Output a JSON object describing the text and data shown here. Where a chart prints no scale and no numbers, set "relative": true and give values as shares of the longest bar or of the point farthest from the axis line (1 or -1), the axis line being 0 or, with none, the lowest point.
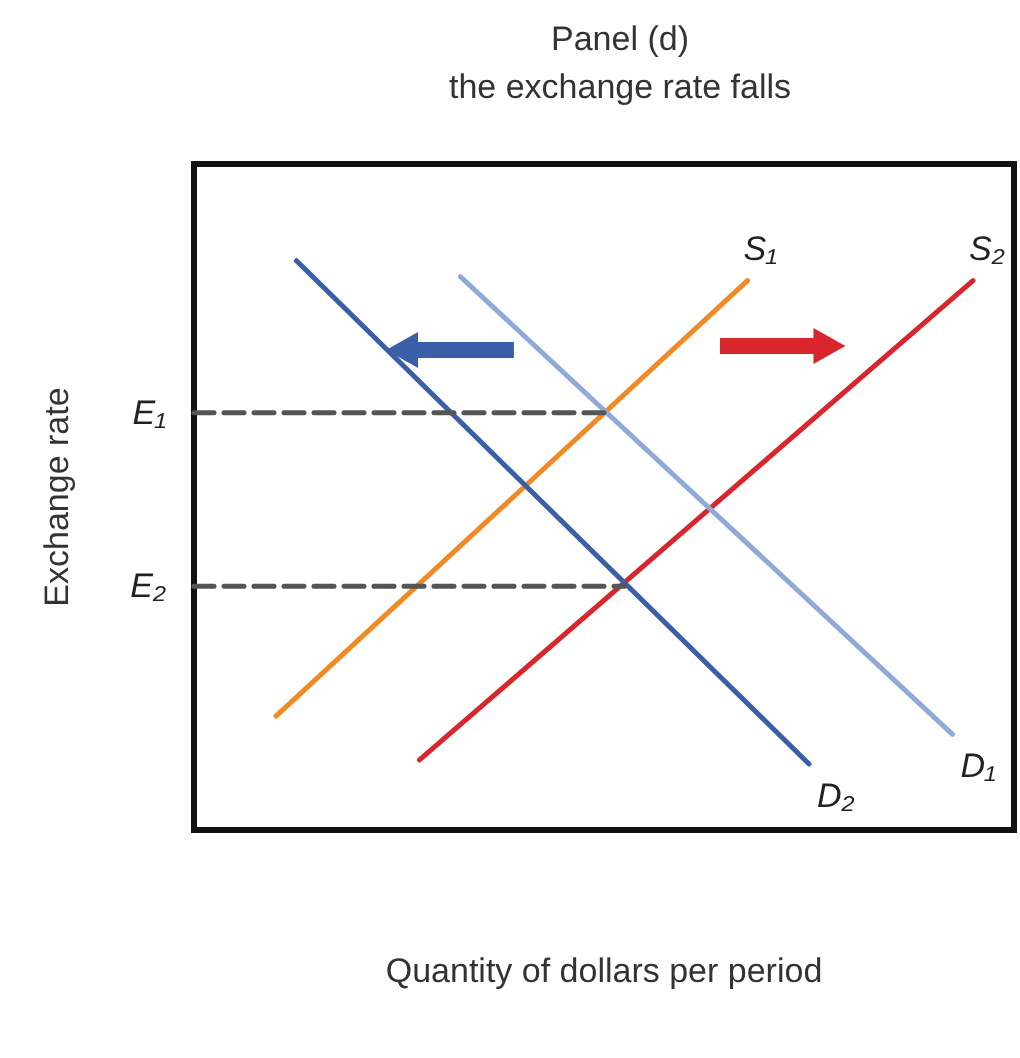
{
  "chart_data": {
    "type": "line",
    "title": "Panel (d)",
    "subtitle": "the exchange rate falls",
    "xlabel": "Quantity of dollars per period",
    "ylabel": "Exchange rate",
    "relative": true,
    "marker": "none",
    "line_style": "solid",
    "categories": [
      null,
      null,
      null,
      null,
      null,
      null,
      null,
      null,
      null,
      null,
      null,
      null,
      null,
      null,
      null,
      null,
      null,
      null,
      null,
      null,
      null,
      null,
      null,
      null,
      null,
      null,
      null,
      null,
      null,
      null,
      null,
      null,
      null,
      null,
      null,
      null,
      null,
      null,
      null,
      null,
      null
    ],
    "series": [
      {
        "name": "S₁",
        "color": "#f08a24",
        "values": [
          null,
          null,
          null,
          null,
          0.2,
          null,
          null,
          null,
          null,
          null,
          null,
          null,
          null,
          null,
          null,
          null,
          null,
          null,
          null,
          null,
          null,
          null,
          null,
          null,
          null,
          null,
          null,
          0.965,
          null,
          null,
          null,
          null,
          null,
          null,
          null,
          null,
          null,
          null,
          null,
          null,
          null
        ]
      },
      {
        "name": "S₂",
        "color": "#d9262c",
        "values": [
          null,
          null,
          null,
          null,
          null,
          null,
          null,
          null,
          null,
          null,
          null,
          0.123,
          null,
          null,
          null,
          null,
          null,
          null,
          null,
          null,
          null,
          null,
          null,
          null,
          null,
          null,
          null,
          null,
          null,
          null,
          null,
          null,
          null,
          null,
          null,
          null,
          null,
          null,
          0.965,
          null,
          null
        ]
      },
      {
        "name": "D₁",
        "color": "#8fa9d8",
        "values": [
          null,
          null,
          null,
          null,
          null,
          null,
          null,
          null,
          null,
          null,
          null,
          null,
          null,
          0.972,
          null,
          null,
          null,
          null,
          null,
          null,
          null,
          null,
          null,
          null,
          null,
          null,
          null,
          null,
          null,
          null,
          null,
          null,
          null,
          null,
          null,
          null,
          null,
          0.168,
          null,
          null,
          null
        ]
      },
      {
        "name": "D₂",
        "color": "#3a5fa8",
        "values": [
          null,
          null,
          null,
          null,
          null,
          1.0,
          null,
          null,
          null,
          null,
          null,
          null,
          null,
          null,
          null,
          null,
          null,
          null,
          null,
          null,
          null,
          null,
          null,
          null,
          null,
          null,
          null,
          null,
          null,
          null,
          0.116,
          null,
          null,
          null,
          null,
          null,
          null,
          null,
          null,
          null,
          null
        ]
      },
      {
        "name": "E₁",
        "color": "#555555",
        "line_style": "dashed",
        "values": [
          0.733,
          null,
          null,
          null,
          null,
          null,
          null,
          null,
          null,
          null,
          null,
          null,
          null,
          null,
          null,
          null,
          null,
          null,
          null,
          null,
          0.733,
          null,
          null,
          null,
          null,
          null,
          null,
          null,
          null,
          null,
          null,
          null,
          null,
          null,
          null,
          null,
          null,
          null,
          null,
          null,
          null
        ]
      },
      {
        "name": "E₂",
        "color": "#555555",
        "line_style": "dashed",
        "values": [
          0.428,
          null,
          null,
          null,
          null,
          null,
          null,
          null,
          null,
          null,
          null,
          null,
          null,
          null,
          null,
          null,
          null,
          null,
          null,
          null,
          null,
          0.428,
          null,
          null,
          null,
          null,
          null,
          null,
          null,
          null,
          null,
          null,
          null,
          null,
          null,
          null,
          null,
          null,
          null,
          null,
          null
        ]
      }
    ]
  }
}
